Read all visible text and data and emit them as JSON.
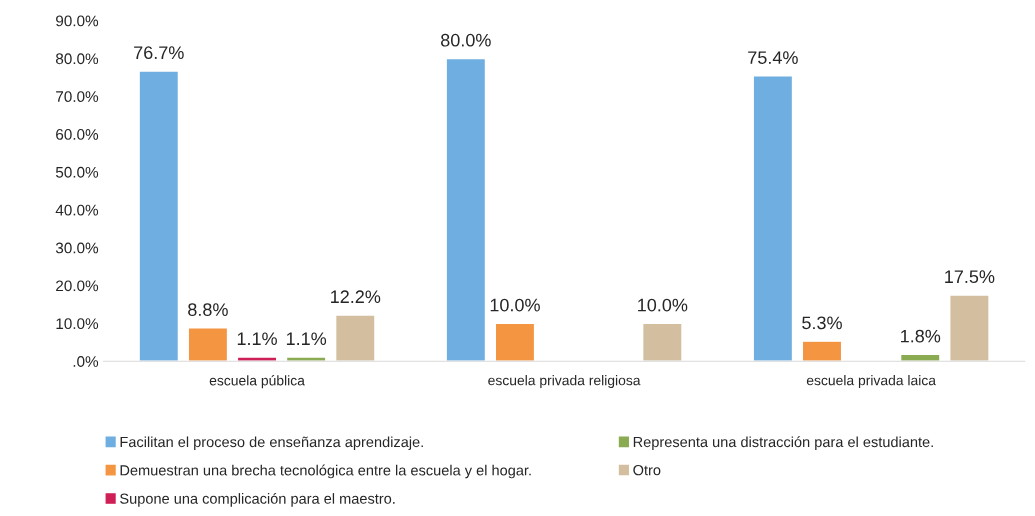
{
  "chart_data": {
    "type": "bar",
    "categories": [
      "escuela pública",
      "escuela privada religiosa",
      "escuela privada laica"
    ],
    "series": [
      {
        "name": "Facilitan el proceso de enseñanza aprendizaje.",
        "color": "#6eaee0",
        "values": [
          76.7,
          80.0,
          75.4
        ],
        "value_labels": [
          "76.7%",
          "80.0%",
          "75.4%"
        ]
      },
      {
        "name": "Demuestran una brecha tecnológica entre la escuela y el hogar.",
        "color": "#f39541",
        "values": [
          8.8,
          10.0,
          5.3
        ],
        "value_labels": [
          "8.8%",
          "10.0%",
          "5.3%"
        ]
      },
      {
        "name": "Supone una complicación para el maestro.",
        "color": "#cf1f57",
        "values": [
          1.1,
          null,
          null
        ],
        "value_labels": [
          "1.1%",
          null,
          null
        ]
      },
      {
        "name": "Representa una distracción para el estudiante.",
        "color": "#8aab52",
        "values": [
          1.1,
          null,
          1.8
        ],
        "value_labels": [
          "1.1%",
          null,
          "1.8%"
        ]
      },
      {
        "name": "Otro",
        "color": "#d3bf9f",
        "values": [
          12.2,
          10.0,
          17.5
        ],
        "value_labels": [
          "12.2%",
          "10.0%",
          "17.5%"
        ]
      }
    ],
    "ylim": [
      0,
      90
    ],
    "yticks": [
      {
        "value": 0,
        "label": ".0%"
      },
      {
        "value": 10,
        "label": "10.0%"
      },
      {
        "value": 20,
        "label": "20.0%"
      },
      {
        "value": 30,
        "label": "30.0%"
      },
      {
        "value": 40,
        "label": "40.0%"
      },
      {
        "value": 50,
        "label": "50.0%"
      },
      {
        "value": 60,
        "label": "60.0%"
      },
      {
        "value": 70,
        "label": "70.0%"
      },
      {
        "value": 80,
        "label": "80.0%"
      },
      {
        "value": 90,
        "label": "90.0%"
      }
    ],
    "grid": false,
    "legend": "bottom"
  }
}
